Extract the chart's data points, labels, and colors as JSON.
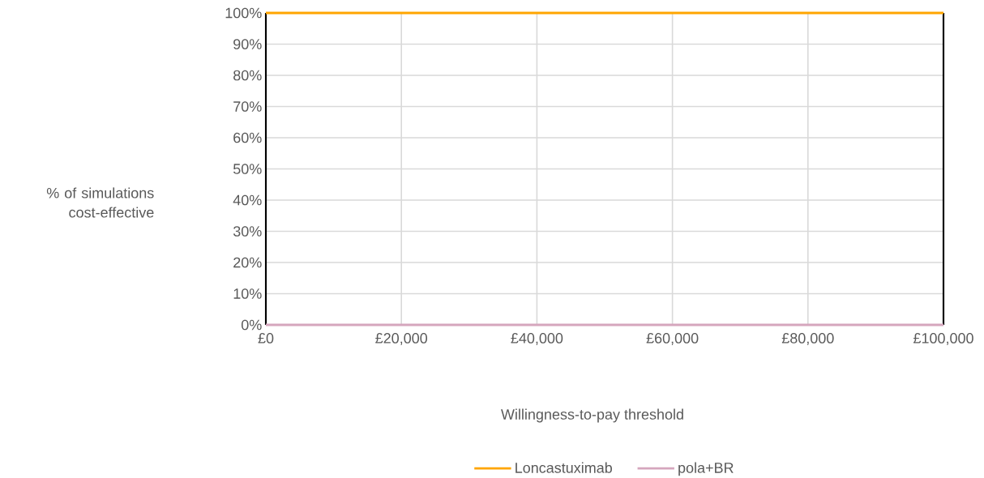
{
  "chart_data": {
    "type": "line",
    "xlabel": "Willingness-to-pay threshold",
    "ylabel": "% of simulations cost-effective",
    "x": [
      0,
      100000
    ],
    "series": [
      {
        "name": "Loncastuximab",
        "color": "#ffa500",
        "values": [
          100,
          100
        ]
      },
      {
        "name": "pola+BR",
        "color": "#d5a6bd",
        "values": [
          0,
          0
        ]
      }
    ],
    "xlim": [
      0,
      100000
    ],
    "ylim": [
      0,
      100
    ],
    "xticks": [
      {
        "value": 0,
        "label": "£0"
      },
      {
        "value": 20000,
        "label": "£20,000"
      },
      {
        "value": 40000,
        "label": "£40,000"
      },
      {
        "value": 60000,
        "label": "£60,000"
      },
      {
        "value": 80000,
        "label": "£80,000"
      },
      {
        "value": 100000,
        "label": "£100,000"
      }
    ],
    "yticks": [
      {
        "value": 0,
        "label": "0%"
      },
      {
        "value": 10,
        "label": "10%"
      },
      {
        "value": 20,
        "label": "20%"
      },
      {
        "value": 30,
        "label": "30%"
      },
      {
        "value": 40,
        "label": "40%"
      },
      {
        "value": 50,
        "label": "50%"
      },
      {
        "value": 60,
        "label": "60%"
      },
      {
        "value": 70,
        "label": "70%"
      },
      {
        "value": 80,
        "label": "80%"
      },
      {
        "value": 90,
        "label": "90%"
      },
      {
        "value": 100,
        "label": "100%"
      }
    ],
    "grid": true,
    "legend": "bottom"
  }
}
